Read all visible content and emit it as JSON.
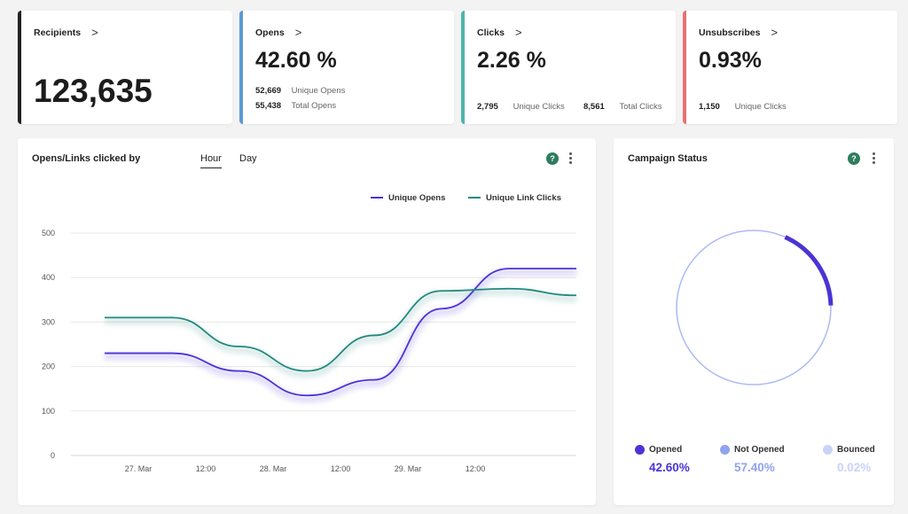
{
  "stats": {
    "recipients": {
      "title": "Recipients",
      "value": "123,635",
      "color": "#222222"
    },
    "opens": {
      "title": "Opens",
      "value": "42.60 %",
      "color": "#5b9bd5",
      "unique_count": "52,669",
      "unique_label": "Unique Opens",
      "total_count": "55,438",
      "total_label": "Total Opens"
    },
    "clicks": {
      "title": "Clicks",
      "value": "2.26 %",
      "color": "#4db6a9",
      "unique_count": "2,795",
      "unique_label": "Unique Clicks",
      "total_count": "8,561",
      "total_label": "Total Clicks"
    },
    "unsubscribes": {
      "title": "Unsubscribes",
      "value": "0.93%",
      "color": "#e57373",
      "count": "1,150",
      "label": "Unique Clicks"
    }
  },
  "chevron": ">",
  "opens_chart": {
    "title": "Opens/Links clicked by",
    "tabs": [
      {
        "label": "Hour",
        "active": true
      },
      {
        "label": "Day",
        "active": false
      }
    ],
    "help": "?",
    "chart_data": {
      "type": "line",
      "x_ticks": [
        "27. Mar",
        "12:00",
        "28. Mar",
        "12:00",
        "29. Mar",
        "12:00"
      ],
      "y_ticks": [
        "0",
        "100",
        "200",
        "300",
        "400",
        "500"
      ],
      "ylim": [
        0,
        500
      ],
      "x_hours": [
        0,
        12,
        24,
        36,
        48,
        60,
        72,
        84
      ],
      "series": [
        {
          "name": "Unique Opens",
          "color": "#4a34d6",
          "values": [
            230,
            230,
            190,
            135,
            170,
            330,
            420,
            420
          ]
        },
        {
          "name": "Unique Link Clicks",
          "color": "#21897e",
          "values": [
            310,
            310,
            245,
            190,
            270,
            370,
            375,
            360
          ]
        }
      ]
    }
  },
  "status_chart": {
    "title": "Campaign Status",
    "help": "?",
    "chart_data": {
      "type": "pie",
      "slices": [
        {
          "label": "Opened",
          "value": 42.6,
          "display": "42.60%",
          "color": "#4a34d6"
        },
        {
          "label": "Not Opened",
          "value": 57.4,
          "display": "57.40%",
          "color": "#8fa3f0"
        },
        {
          "label": "Bounced",
          "value": 0.02,
          "display": "0.02%",
          "color": "#c9d3f7"
        }
      ]
    }
  }
}
